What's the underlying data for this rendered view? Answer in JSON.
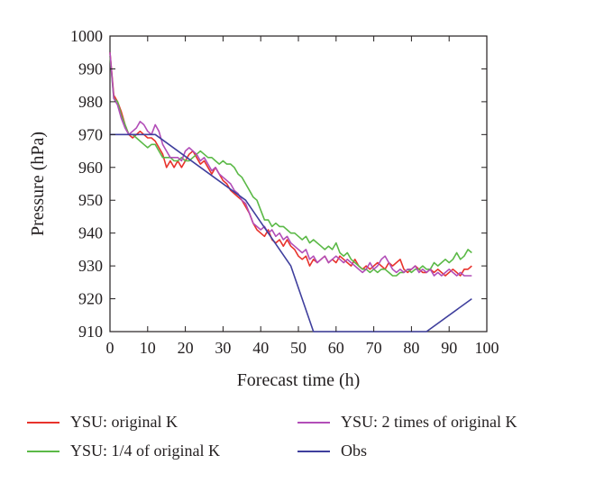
{
  "chart_data": {
    "type": "line",
    "title": "",
    "xlabel": "Forecast time (h)",
    "ylabel": "Pressure (hPa)",
    "xlim": [
      0,
      100
    ],
    "ylim": [
      910,
      1000
    ],
    "xticks": [
      "0",
      "10",
      "20",
      "30",
      "40",
      "50",
      "60",
      "70",
      "80",
      "90",
      "100"
    ],
    "yticks": [
      "910",
      "920",
      "930",
      "940",
      "950",
      "960",
      "970",
      "980",
      "990",
      "1000"
    ],
    "grid": false,
    "legend_position": "bottom",
    "series": [
      {
        "name": "YSU: original K",
        "color": "#e8332c",
        "x": [
          0,
          1,
          2,
          3,
          4,
          5,
          6,
          7,
          8,
          9,
          10,
          11,
          12,
          13,
          14,
          15,
          16,
          17,
          18,
          19,
          20,
          21,
          22,
          23,
          24,
          25,
          26,
          27,
          28,
          29,
          30,
          31,
          32,
          33,
          34,
          35,
          36,
          37,
          38,
          39,
          40,
          41,
          42,
          43,
          44,
          45,
          46,
          47,
          48,
          49,
          50,
          51,
          52,
          53,
          54,
          55,
          56,
          57,
          58,
          59,
          60,
          61,
          62,
          63,
          64,
          65,
          66,
          67,
          68,
          69,
          70,
          71,
          72,
          73,
          74,
          75,
          76,
          77,
          78,
          79,
          80,
          81,
          82,
          83,
          84,
          85,
          86,
          87,
          88,
          89,
          90,
          91,
          92,
          93,
          94,
          95,
          96
        ],
        "y": [
          995,
          982,
          980,
          977,
          973,
          970,
          969,
          970,
          971,
          970,
          969,
          969,
          968,
          966,
          964,
          960,
          962,
          960,
          962,
          960,
          962,
          964,
          965,
          963,
          961,
          962,
          960,
          958,
          960,
          958,
          956,
          955,
          953,
          952,
          951,
          950,
          948,
          946,
          943,
          941,
          940,
          939,
          941,
          938,
          937,
          938,
          936,
          938,
          936,
          935,
          933,
          932,
          933,
          930,
          932,
          931,
          932,
          933,
          931,
          932,
          931,
          933,
          932,
          931,
          930,
          932,
          930,
          929,
          930,
          929,
          930,
          931,
          930,
          929,
          931,
          930,
          931,
          932,
          929,
          928,
          929,
          930,
          929,
          928,
          928,
          929,
          928,
          929,
          928,
          927,
          928,
          929,
          928,
          927,
          929,
          929,
          930
        ]
      },
      {
        "name": "YSU: 1/4 of original K",
        "color": "#5bb947",
        "x": [
          0,
          1,
          2,
          3,
          4,
          5,
          6,
          7,
          8,
          9,
          10,
          11,
          12,
          13,
          14,
          15,
          16,
          17,
          18,
          19,
          20,
          21,
          22,
          23,
          24,
          25,
          26,
          27,
          28,
          29,
          30,
          31,
          32,
          33,
          34,
          35,
          36,
          37,
          38,
          39,
          40,
          41,
          42,
          43,
          44,
          45,
          46,
          47,
          48,
          49,
          50,
          51,
          52,
          53,
          54,
          55,
          56,
          57,
          58,
          59,
          60,
          61,
          62,
          63,
          64,
          65,
          66,
          67,
          68,
          69,
          70,
          71,
          72,
          73,
          74,
          75,
          76,
          77,
          78,
          79,
          80,
          81,
          82,
          83,
          84,
          85,
          86,
          87,
          88,
          89,
          90,
          91,
          92,
          93,
          94,
          95,
          96
        ],
        "y": [
          994,
          981,
          980,
          976,
          973,
          970,
          970,
          969,
          968,
          967,
          966,
          967,
          967,
          965,
          963,
          963,
          963,
          962,
          962,
          963,
          962,
          962,
          963,
          964,
          965,
          964,
          963,
          963,
          962,
          961,
          962,
          961,
          961,
          960,
          958,
          957,
          955,
          953,
          951,
          950,
          947,
          944,
          944,
          942,
          943,
          942,
          942,
          941,
          940,
          940,
          939,
          938,
          939,
          937,
          938,
          937,
          936,
          935,
          936,
          935,
          937,
          934,
          933,
          934,
          932,
          931,
          930,
          929,
          929,
          928,
          929,
          928,
          929,
          929,
          928,
          927,
          927,
          928,
          928,
          929,
          928,
          929,
          929,
          930,
          929,
          929,
          931,
          930,
          931,
          932,
          931,
          932,
          934,
          932,
          933,
          935,
          934
        ]
      },
      {
        "name": "YSU: 2 times of original K",
        "color": "#b24eb8",
        "x": [
          0,
          1,
          2,
          3,
          4,
          5,
          6,
          7,
          8,
          9,
          10,
          11,
          12,
          13,
          14,
          15,
          16,
          17,
          18,
          19,
          20,
          21,
          22,
          23,
          24,
          25,
          26,
          27,
          28,
          29,
          30,
          31,
          32,
          33,
          34,
          35,
          36,
          37,
          38,
          39,
          40,
          41,
          42,
          43,
          44,
          45,
          46,
          47,
          48,
          49,
          50,
          51,
          52,
          53,
          54,
          55,
          56,
          57,
          58,
          59,
          60,
          61,
          62,
          63,
          64,
          65,
          66,
          67,
          68,
          69,
          70,
          71,
          72,
          73,
          74,
          75,
          76,
          77,
          78,
          79,
          80,
          81,
          82,
          83,
          84,
          85,
          86,
          87,
          88,
          89,
          90,
          91,
          92,
          93,
          94,
          95,
          96
        ],
        "y": [
          995,
          981,
          979,
          975,
          972,
          970,
          971,
          972,
          974,
          973,
          971,
          970,
          973,
          971,
          967,
          965,
          963,
          963,
          963,
          962,
          965,
          966,
          965,
          964,
          962,
          963,
          961,
          959,
          960,
          958,
          957,
          956,
          955,
          953,
          952,
          950,
          949,
          946,
          943,
          942,
          941,
          942,
          940,
          941,
          939,
          940,
          938,
          939,
          937,
          936,
          935,
          934,
          935,
          932,
          933,
          931,
          932,
          933,
          931,
          932,
          933,
          932,
          931,
          932,
          931,
          930,
          929,
          928,
          929,
          931,
          929,
          930,
          932,
          933,
          931,
          929,
          928,
          929,
          928,
          929,
          929,
          930,
          928,
          929,
          928,
          929,
          927,
          928,
          927,
          928,
          929,
          928,
          927,
          928,
          927,
          927,
          927
        ]
      },
      {
        "name": "Obs",
        "color": "#3f3f9d",
        "x": [
          0,
          12,
          36,
          48,
          54,
          84,
          96
        ],
        "y": [
          970,
          970,
          950,
          930,
          910,
          910,
          920
        ]
      }
    ]
  }
}
